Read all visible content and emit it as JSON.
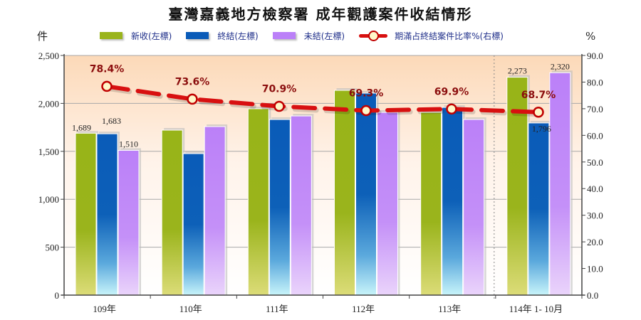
{
  "title": "臺灣嘉義地方檢察署  成年觀護案件收結情形",
  "legend": [
    {
      "label": "新收(左標)",
      "color": "#9ab41c"
    },
    {
      "label": "終結(左標)",
      "color": "#0a5bb8"
    },
    {
      "label": "未結(左標)",
      "color": "#bb80f8"
    },
    {
      "label": "期滿占終結案件比率%(右標)",
      "color": "#d81010"
    }
  ],
  "left_unit": "件",
  "right_unit": "%",
  "colors": {
    "new": "#9ab41c",
    "closed": "#0a5bb8",
    "pending": "#bb80f8",
    "rate_line": "#d81010",
    "rate_label": "#8b0d0d",
    "bg_top": "#fcd9b8"
  },
  "chart_data": {
    "type": "bar",
    "title": "臺灣嘉義地方檢察署  成年觀護案件收結情形",
    "categories": [
      "109年",
      "110年",
      "111年",
      "112年",
      "113年",
      "114年 1- 10月"
    ],
    "series": [
      {
        "name": "新收(左標)",
        "axis": "left",
        "type": "bar",
        "values": [
          1689,
          1721,
          1944,
          2136,
          1906,
          2273
        ]
      },
      {
        "name": "終結(左標)",
        "axis": "left",
        "type": "bar",
        "values": [
          1683,
          1476,
          1832,
          2107,
          1958,
          1796
        ]
      },
      {
        "name": "未結(左標)",
        "axis": "left",
        "type": "bar",
        "values": [
          1510,
          1758,
          1869,
          1906,
          1832,
          2320
        ]
      },
      {
        "name": "期滿占終結案件比率%(右標)",
        "axis": "right",
        "type": "line",
        "values": [
          78.4,
          73.6,
          70.9,
          69.3,
          69.9,
          68.7
        ]
      }
    ],
    "value_labels": {
      "109年": {
        "新收": "1,689",
        "終結": "1,683",
        "未結": "1,510"
      },
      "114年 1- 10月": {
        "新收": "2,273",
        "終結": "1,796",
        "未結": "2,320"
      }
    },
    "rate_labels": [
      "78.4%",
      "73.6%",
      "70.9%",
      "69.3%",
      "69.9%",
      "68.7%"
    ],
    "ylabel_left": "件",
    "ylabel_right": "%",
    "ylim_left": [
      0,
      2500
    ],
    "ylim_right": [
      0,
      90
    ],
    "yticks_left": [
      "0",
      "500",
      "1,000",
      "1,500",
      "2,000",
      "2,500"
    ],
    "yticks_right": [
      "0.0",
      "10.0",
      "20.0",
      "30.0",
      "40.0",
      "50.0",
      "60.0",
      "70.0",
      "80.0",
      "90.0"
    ],
    "grid": true,
    "legend_position": "top"
  }
}
